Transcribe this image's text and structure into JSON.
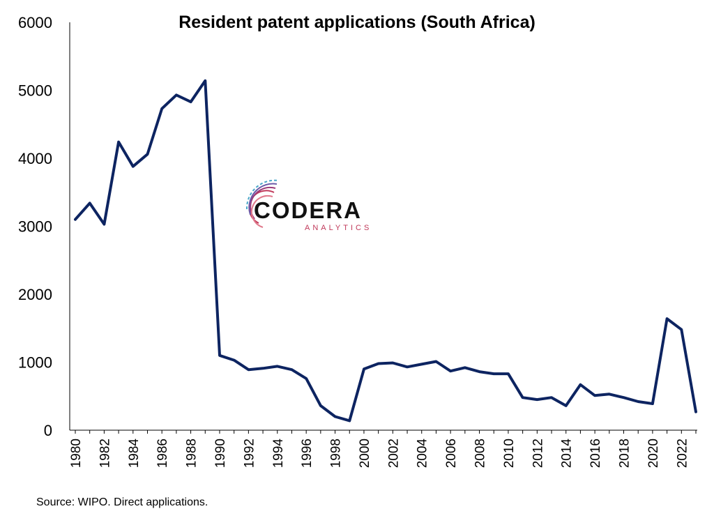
{
  "chart_data": {
    "type": "line",
    "title": "Resident patent applications (South Africa)",
    "source": "Source: WIPO. Direct applications.",
    "xlabel": "",
    "ylabel": "",
    "ylim": [
      0,
      6000
    ],
    "yticks": [
      0,
      1000,
      2000,
      3000,
      4000,
      5000,
      6000
    ],
    "xlim": [
      1980,
      2023
    ],
    "xticks": [
      "1980",
      "1982",
      "1984",
      "1986",
      "1988",
      "1990",
      "1992",
      "1994",
      "1996",
      "1998",
      "2000",
      "2002",
      "2004",
      "2006",
      "2008",
      "2010",
      "2012",
      "2014",
      "2016",
      "2018",
      "2020",
      "2022"
    ],
    "grid": false,
    "line_color": "#0d2461",
    "x": [
      1980,
      1981,
      1982,
      1983,
      1984,
      1985,
      1986,
      1987,
      1988,
      1989,
      1990,
      1991,
      1992,
      1993,
      1994,
      1995,
      1996,
      1997,
      1998,
      1999,
      2000,
      2001,
      2002,
      2003,
      2004,
      2005,
      2006,
      2007,
      2008,
      2009,
      2010,
      2011,
      2012,
      2013,
      2014,
      2015,
      2016,
      2017,
      2018,
      2019,
      2020,
      2021,
      2022,
      2023
    ],
    "values": [
      3100,
      3340,
      3030,
      4240,
      3880,
      4060,
      4730,
      4930,
      4830,
      5140,
      1100,
      1030,
      890,
      910,
      940,
      890,
      760,
      360,
      200,
      140,
      900,
      980,
      990,
      930,
      970,
      1010,
      870,
      920,
      860,
      830,
      830,
      480,
      450,
      480,
      360,
      670,
      510,
      530,
      480,
      420,
      390,
      1640,
      1480,
      270
    ]
  },
  "logo": {
    "name": "CODERA",
    "tagline": "ANALYTICS"
  }
}
